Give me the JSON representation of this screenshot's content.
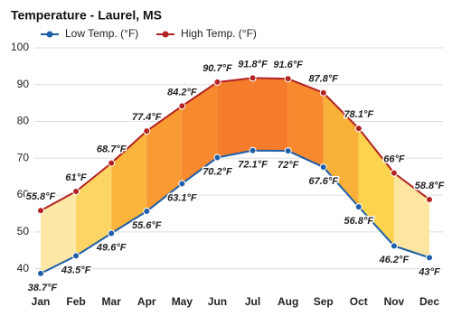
{
  "chart_data": {
    "type": "line",
    "title": "Temperature - Laurel, MS",
    "categories": [
      "Jan",
      "Feb",
      "Mar",
      "Apr",
      "May",
      "Jun",
      "Jul",
      "Aug",
      "Sep",
      "Oct",
      "Nov",
      "Dec"
    ],
    "series": [
      {
        "name": "Low Temp. (°F)",
        "color": "#1f5fa8",
        "values": [
          38.7,
          43.5,
          49.6,
          55.6,
          63.1,
          70.2,
          72.1,
          72,
          67.6,
          56.8,
          46.2,
          43
        ],
        "value_labels": [
          "38.7°F",
          "43.5°F",
          "49.6°F",
          "55.6°F",
          "63.1°F",
          "70.2°F",
          "72.1°F",
          "72°F",
          "67.6°F",
          "56.8°F",
          "46.2°F",
          "43°F"
        ]
      },
      {
        "name": "High Temp. (°F)",
        "color": "#b22222",
        "values": [
          55.8,
          61,
          68.7,
          77.4,
          84.2,
          90.7,
          91.8,
          91.6,
          87.8,
          78.1,
          66,
          58.8
        ],
        "value_labels": [
          "55.8°F",
          "61°F",
          "68.7°F",
          "77.4°F",
          "84.2°F",
          "90.7°F",
          "91.8°F",
          "91.6°F",
          "87.8°F",
          "78.1°F",
          "66°F",
          "58.8°F"
        ]
      }
    ],
    "fill_colors": [
      "#fde8a6",
      "#fcd565",
      "#fbb53c",
      "#f99a33",
      "#f7892e",
      "#f57c2b",
      "#f57c2b",
      "#f7892e",
      "#fab13a",
      "#fcd34f",
      "#fde7a0"
    ],
    "ylim": [
      35,
      100
    ],
    "yticks": [
      40,
      50,
      60,
      70,
      80,
      90,
      100
    ],
    "grid": true
  }
}
